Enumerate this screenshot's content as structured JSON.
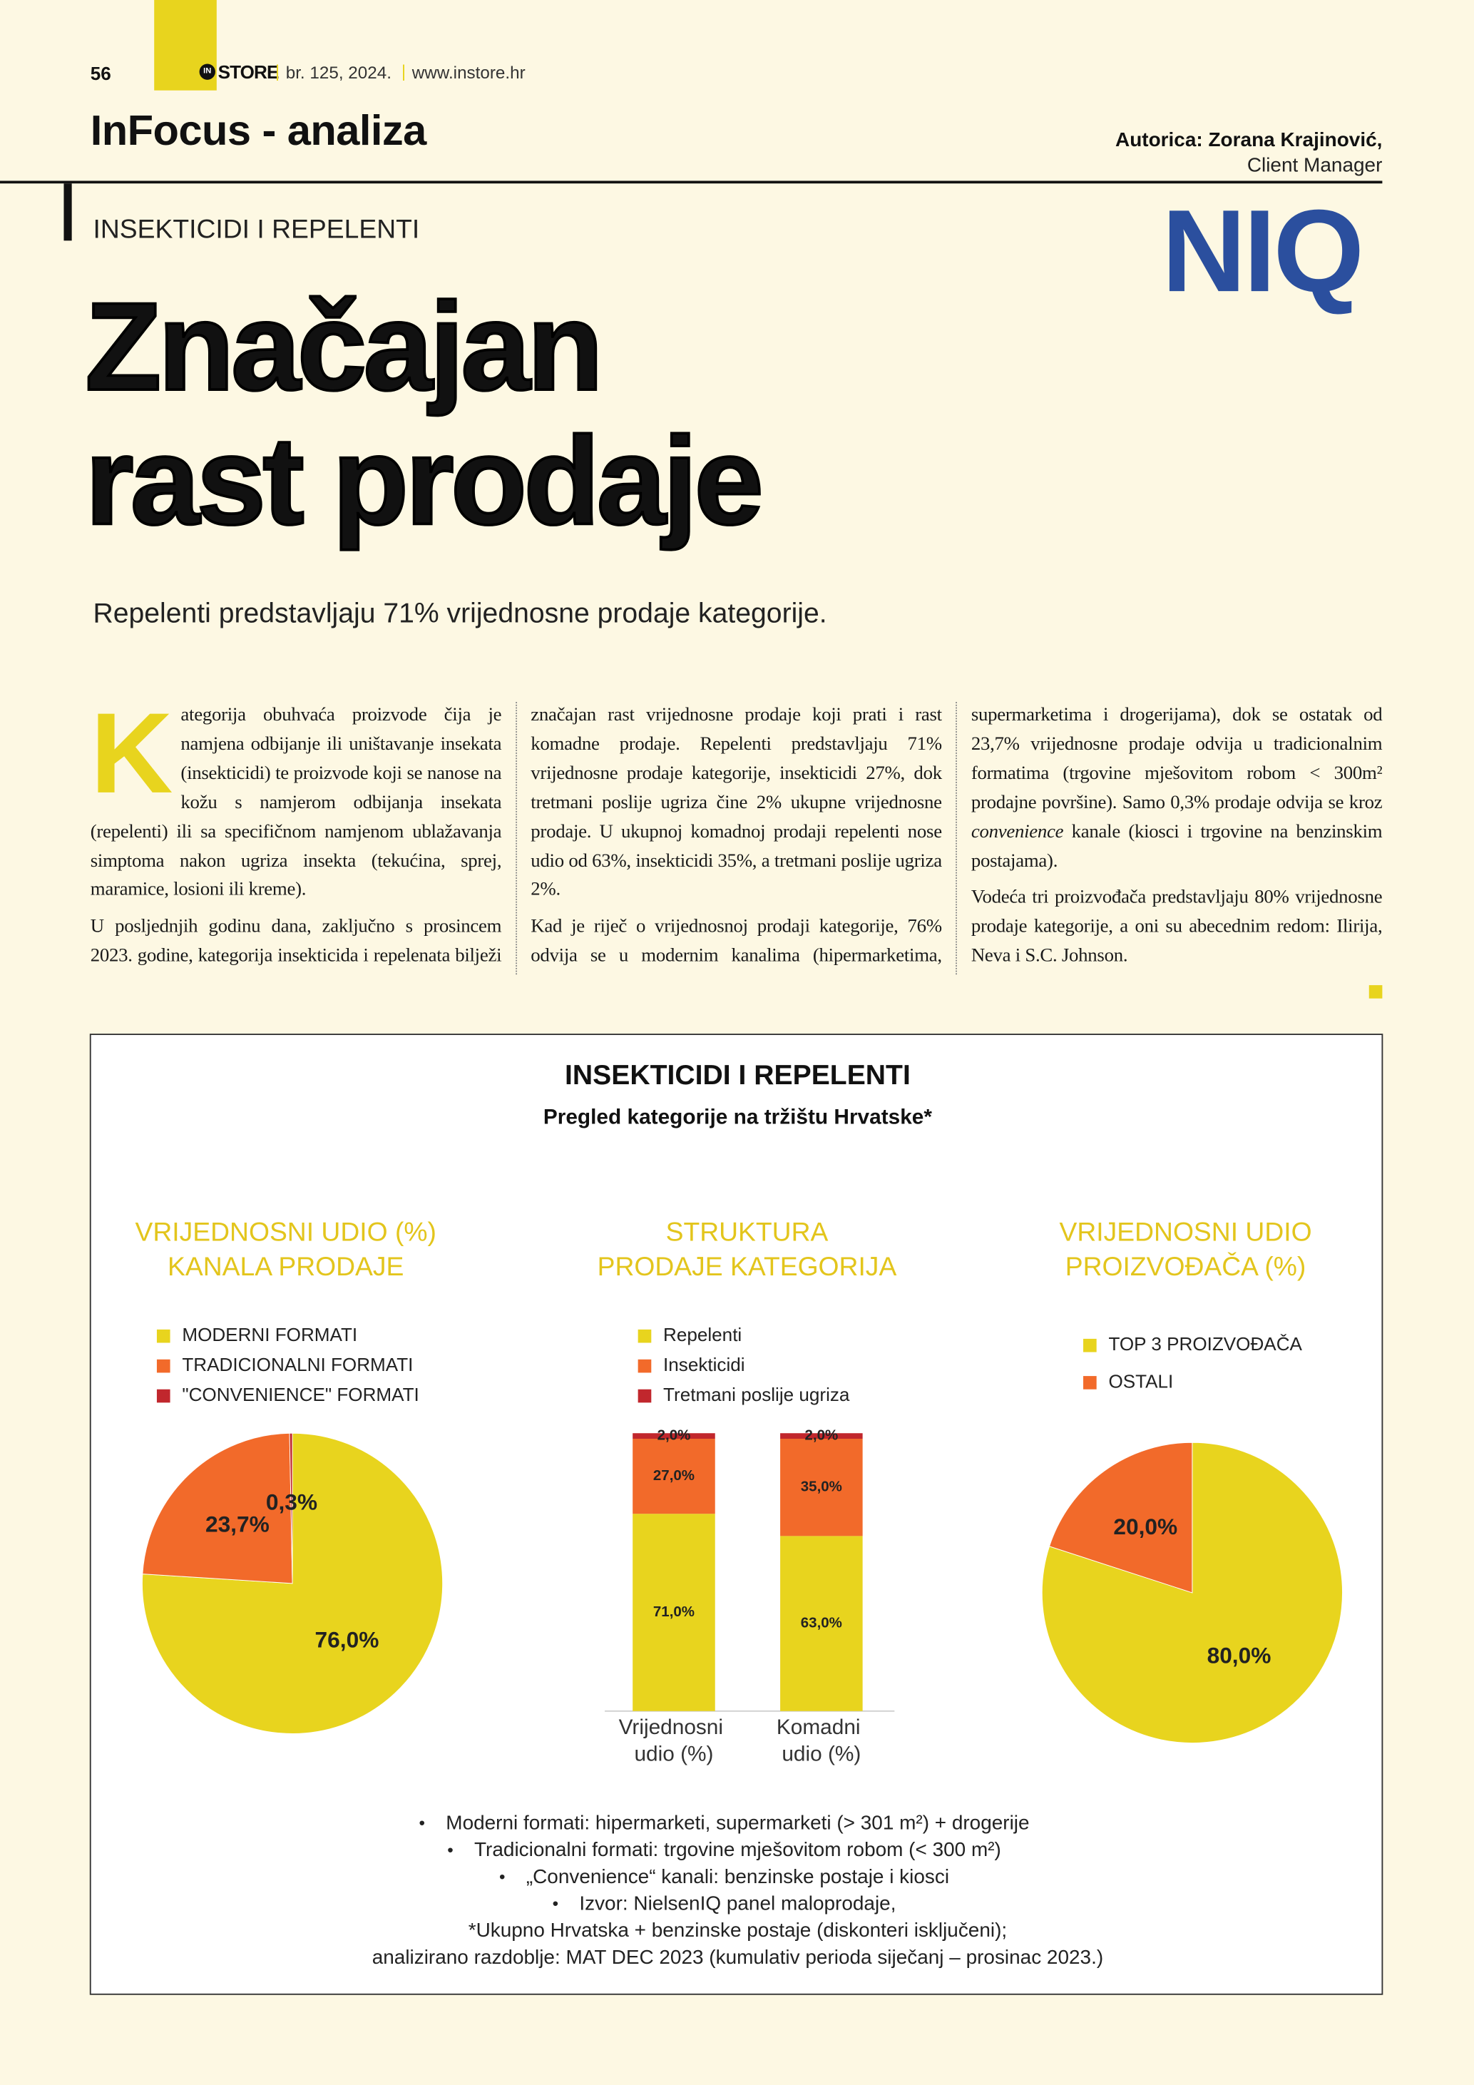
{
  "header": {
    "page_number": "56",
    "brand_mark": "IN",
    "brand": "STORE",
    "issue": "br. 125, 2024.",
    "url": "www.instore.hr",
    "section": "InFocus - analiza",
    "author": "Autorica: Zorana Krajinović,",
    "author_role": "Client Manager",
    "logo": "NIQ"
  },
  "article": {
    "kicker": "INSEKTICIDI I REPELENTI",
    "headline": [
      "Značajan",
      "rast prodaje"
    ],
    "lead": "Repelenti predstavljaju 71% vrijednosne prodaje kategorije.",
    "paragraphs": [
      [
        "Kategorija obuhvaća proizvode čija je namjena odbijanje ili uništavanje insekata (insekticidi) te proizvode koji se nanose na kožu s namjerom odbijanja insekata (repelenti) ili sa specifičnom namjenom ublažavanja simptoma nakon ugriza insekta (tekućina, sprej, maramice, losioni ili kreme)."
      ],
      [
        "U posljednjih godinu dana, zaključno s prosincem 2023. godine, kategorija insekticida i repelenata bilježi značajan rast vrijednosne prodaje koji prati i rast komadne prodaje. Repelenti predstavljaju 71% vrijednosne prodaje kategorije, insekticidi 27%, dok tretmani poslije ugriza čine 2% ukupne vrijednosne prodaje. U ukupnoj komadnoj prodaji repelenti nose udio od 63%, insekticidi 35%, a tretmani poslije ugriza 2%."
      ],
      [
        "Kad je riječ o vrijednosnoj prodaji kategorije, 76% odvija se u modernim kanalima (hipermarketima, supermarketima i drogerijama), dok se ostatak od 23,7% vrijednosne prodaje odvija u tradicionalnim formatima (trgovine mješovitom robom < 300m² prodajne površine). Samo 0,3% prodaje odvija se kroz ",
        {
          "em": "convenience"
        },
        " kanale (kiosci i trgovine na benzinskim postajama)."
      ],
      [
        "Vodeća tri proizvođača predstavljaju 80% vrijednosne prodaje kategorije, a oni su abecednim redom: Ilirija, Neva i S.C. Johnson."
      ]
    ]
  },
  "infographic": {
    "title": "INSEKTICIDI I REPELENTI",
    "subtitle": "Pregled kategorije na tržištu Hrvatske*",
    "notes": [
      {
        "text": "Moderni formati: hipermarketi, supermarketi (> 301 m²) + drogerije",
        "bullet": true
      },
      {
        "text": "Tradicionalni formati: trgovine mješovitom robom (< 300 m²)",
        "bullet": true
      },
      {
        "text": "„Convenience“ kanali: benzinske postaje i kiosci",
        "bullet": true
      },
      {
        "text": "Izvor: NielsenIQ panel maloprodaje,",
        "bullet": true
      },
      {
        "text": "*Ukupno Hrvatska + benzinske postaje (diskonteri isključeni);",
        "bullet": false
      },
      {
        "text": "analizirano razdoblje: MAT DEC 2023 (kumulativ perioda siječanj – prosinac 2023.)",
        "bullet": false
      }
    ]
  },
  "chart_data": [
    {
      "type": "pie",
      "title": [
        "VRIJEDNOSNI UDIO (%)",
        "KANALA PRODAJE"
      ],
      "categories": [
        "MODERNI FORMATI",
        "TRADICIONALNI FORMATI",
        "\"CONVENIENCE\" FORMATI"
      ],
      "values": [
        76.0,
        23.7,
        0.3
      ],
      "value_labels": [
        "76,0%",
        "23,7%",
        "0,3%"
      ],
      "colors": [
        "#e8d41e",
        "#f26a2a",
        "#c1272d"
      ]
    },
    {
      "type": "bar",
      "stacked": true,
      "title": [
        "STRUKTURA",
        "PRODAJE KATEGORIJA"
      ],
      "categories": [
        "Vrijednosni udio (%)",
        "Komadni udio (%)"
      ],
      "ylim": [
        0,
        100
      ],
      "series": [
        {
          "name": "Repelenti",
          "color": "#e8d41e",
          "values": [
            71.0,
            63.0
          ],
          "value_labels": [
            "71,0%",
            "63,0%"
          ]
        },
        {
          "name": "Insekticidi",
          "color": "#f26a2a",
          "values": [
            27.0,
            35.0
          ],
          "value_labels": [
            "27,0%",
            "35,0%"
          ]
        },
        {
          "name": "Tretmani poslije ugriza",
          "color": "#c1272d",
          "values": [
            2.0,
            2.0
          ],
          "value_labels": [
            "2,0%",
            "2,0%"
          ]
        }
      ]
    },
    {
      "type": "pie",
      "title": [
        "VRIJEDNOSNI UDIO",
        "PROIZVOĐAČA (%)"
      ],
      "categories": [
        "TOP 3 PROIZVOĐAČA",
        "OSTALI"
      ],
      "values": [
        80.0,
        20.0
      ],
      "value_labels": [
        "80,0%",
        "20,0%"
      ],
      "colors": [
        "#e8d41e",
        "#f26a2a"
      ]
    }
  ]
}
